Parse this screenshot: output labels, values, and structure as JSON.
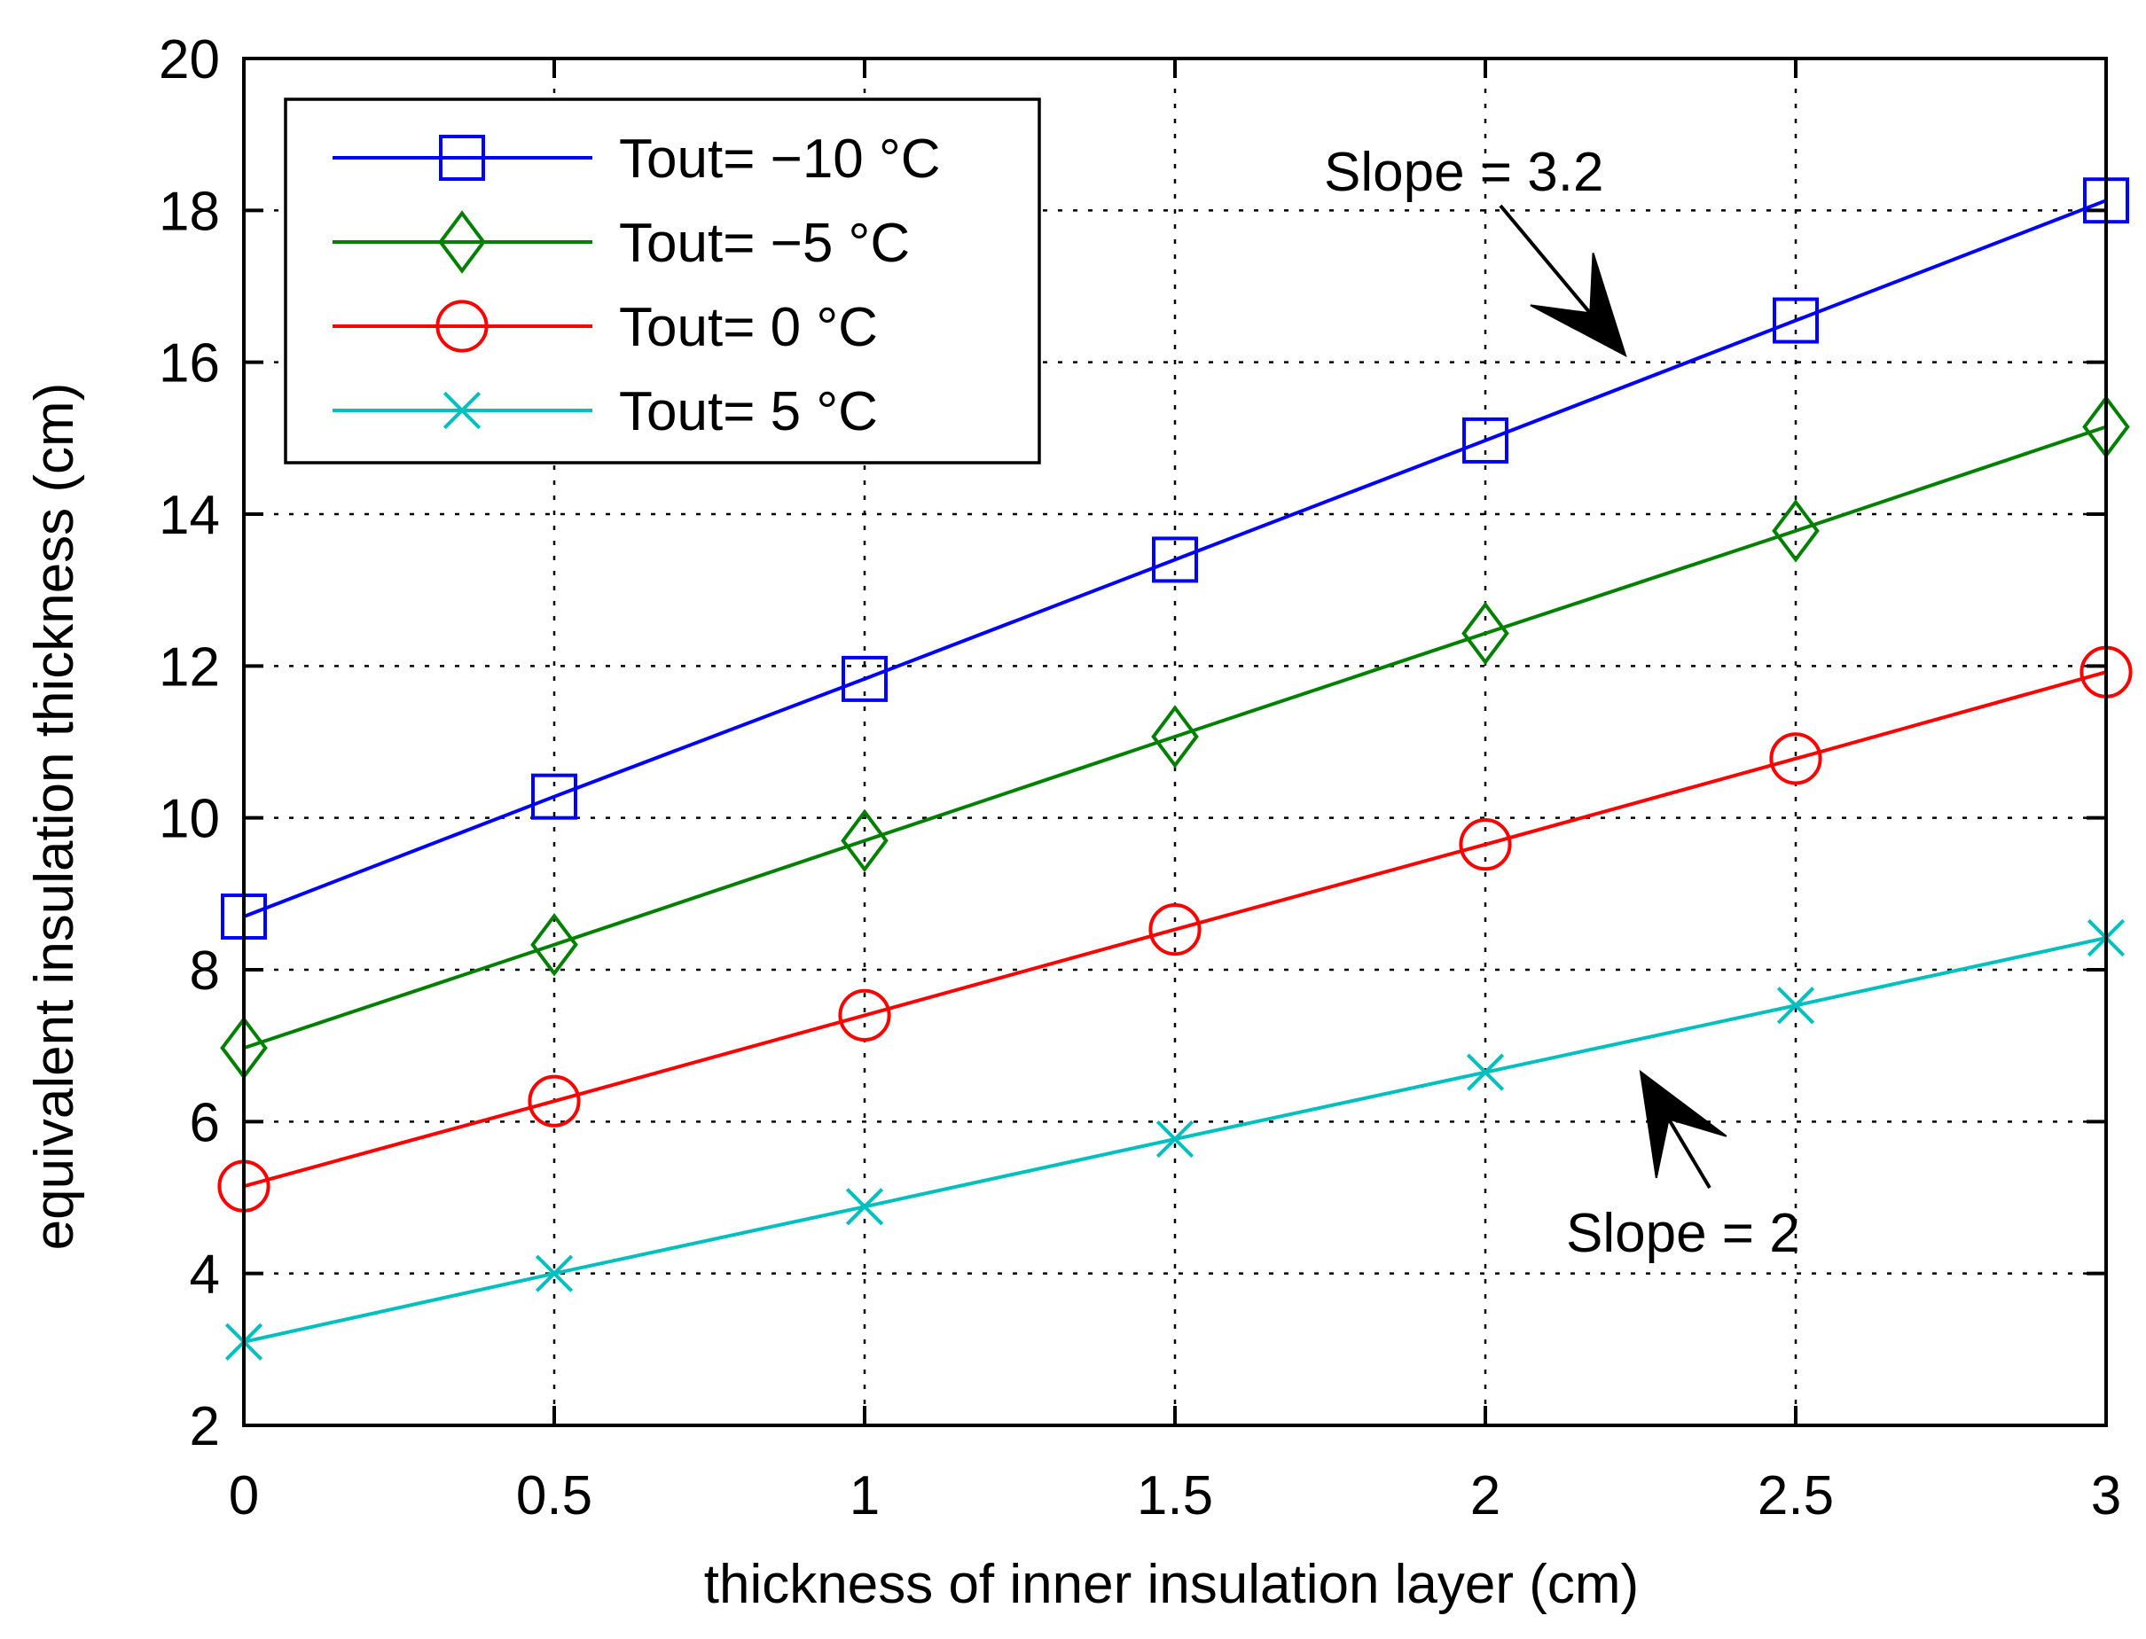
{
  "chart_data": {
    "type": "line",
    "title": "",
    "xlabel": "thickness of inner insulation layer (cm)",
    "ylabel": "equivalent insulation thickness (cm)",
    "xlim": [
      0,
      3
    ],
    "ylim": [
      2,
      20
    ],
    "xticks": [
      0,
      0.5,
      1,
      1.5,
      2,
      2.5,
      3
    ],
    "xtick_labels": [
      "0",
      "0.5",
      "1",
      "1.5",
      "2",
      "2.5",
      "3"
    ],
    "yticks": [
      2,
      4,
      6,
      8,
      10,
      12,
      14,
      16,
      18,
      20
    ],
    "ytick_labels": [
      "2",
      "4",
      "6",
      "8",
      "10",
      "12",
      "14",
      "16",
      "18",
      "20"
    ],
    "grid": true,
    "legend_position": "top-left",
    "x": [
      0,
      0.5,
      1,
      1.5,
      2,
      2.5,
      3
    ],
    "series": [
      {
        "name": "Tout= −10 °C",
        "color": "#0000ff",
        "marker": "square",
        "values": [
          8.7,
          10.28,
          11.83,
          13.4,
          14.97,
          16.55,
          18.13
        ]
      },
      {
        "name": "Tout= −5 °C",
        "color": "#008000",
        "marker": "diamond",
        "values": [
          6.97,
          8.33,
          9.7,
          11.07,
          12.43,
          13.78,
          15.15
        ]
      },
      {
        "name": "Tout= 0 °C",
        "color": "#ff0000",
        "marker": "circle",
        "values": [
          5.15,
          6.27,
          7.4,
          8.53,
          9.65,
          10.78,
          11.92
        ]
      },
      {
        "name": "Tout= 5 °C",
        "color": "#00bfbf",
        "marker": "x",
        "values": [
          3.1,
          4.0,
          4.88,
          5.77,
          6.65,
          7.53,
          8.42
        ]
      }
    ],
    "annotations": [
      {
        "text": "Slope = 3.2",
        "points_to": {
          "x": 2.2,
          "y": 15.6
        }
      },
      {
        "text": "Slope = 2",
        "points_to": {
          "x": 2.25,
          "y": 7.1
        }
      }
    ]
  }
}
